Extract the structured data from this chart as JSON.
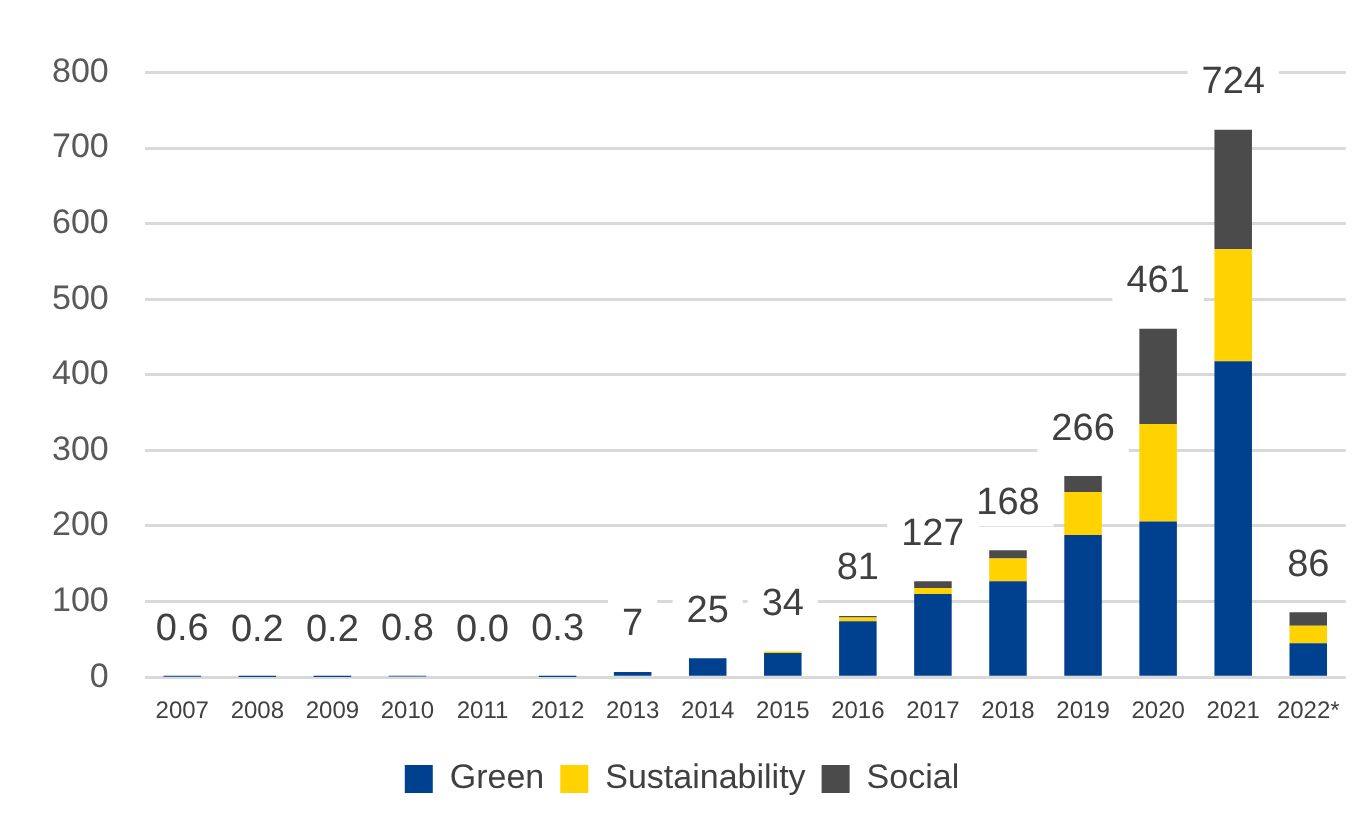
{
  "chart_data": {
    "type": "bar",
    "stacked": true,
    "categories": [
      "2007",
      "2008",
      "2009",
      "2010",
      "2011",
      "2012",
      "2013",
      "2014",
      "2015",
      "2016",
      "2017",
      "2018",
      "2019",
      "2020",
      "2021",
      "2022*"
    ],
    "series": [
      {
        "name": "Green",
        "color": "#00418f",
        "values": [
          0.6,
          0.2,
          0.2,
          0.8,
          0.0,
          0.3,
          7,
          25,
          32,
          74,
          110,
          127,
          188,
          206,
          418,
          45
        ]
      },
      {
        "name": "Sustainability",
        "color": "#ffd200",
        "values": [
          0,
          0,
          0,
          0,
          0,
          0,
          null,
          null,
          2,
          5,
          8,
          30,
          57,
          129,
          148,
          23
        ]
      },
      {
        "name": "Social",
        "color": "#4b4b4b",
        "values": [
          0,
          0,
          0,
          0,
          0,
          0,
          0,
          0,
          0,
          2,
          9,
          11,
          21,
          126,
          158,
          18
        ]
      }
    ],
    "totals": [
      "0.6",
      "0.2",
      "0.2",
      "0.8",
      "0.0",
      "0.3",
      "7",
      "25",
      "34",
      "81",
      "127",
      "168",
      "266",
      "461",
      "724",
      "86"
    ],
    "ylim": [
      0,
      800
    ],
    "yticks": [
      0,
      100,
      200,
      300,
      400,
      500,
      600,
      700,
      800
    ],
    "grid": "y",
    "legend": "bottom"
  }
}
